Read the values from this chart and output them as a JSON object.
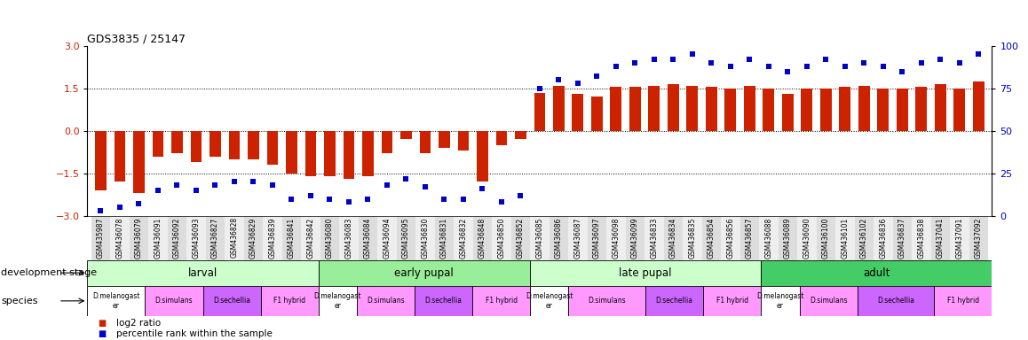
{
  "title": "GDS3835 / 25147",
  "gsm_ids": [
    "GSM435987",
    "GSM436078",
    "GSM436079",
    "GSM436091",
    "GSM436092",
    "GSM436093",
    "GSM436827",
    "GSM436828",
    "GSM436829",
    "GSM436839",
    "GSM436841",
    "GSM436842",
    "GSM436080",
    "GSM436083",
    "GSM436084",
    "GSM436094",
    "GSM436095",
    "GSM436830",
    "GSM436831",
    "GSM436832",
    "GSM436848",
    "GSM436850",
    "GSM436852",
    "GSM436085",
    "GSM436086",
    "GSM436087",
    "GSM436097",
    "GSM436098",
    "GSM436099",
    "GSM436833",
    "GSM436834",
    "GSM436835",
    "GSM436854",
    "GSM436856",
    "GSM436857",
    "GSM436088",
    "GSM436089",
    "GSM436090",
    "GSM436100",
    "GSM436101",
    "GSM436102",
    "GSM436836",
    "GSM436837",
    "GSM436838",
    "GSM437041",
    "GSM437091",
    "GSM437092"
  ],
  "log2_ratio": [
    -2.1,
    -1.8,
    -2.2,
    -0.9,
    -0.8,
    -1.1,
    -0.9,
    -1.0,
    -1.0,
    -1.2,
    -1.5,
    -1.6,
    -1.6,
    -1.7,
    -1.6,
    -0.8,
    -0.3,
    -0.8,
    -0.6,
    -0.7,
    -1.8,
    -0.5,
    -0.3,
    1.35,
    1.6,
    1.3,
    1.2,
    1.55,
    1.55,
    1.6,
    1.65,
    1.6,
    1.55,
    1.5,
    1.6,
    1.5,
    1.3,
    1.5,
    1.5,
    1.55,
    1.6,
    1.5,
    1.5,
    1.55,
    1.65,
    1.5,
    1.75
  ],
  "percentile": [
    3,
    5,
    7,
    15,
    18,
    15,
    18,
    20,
    20,
    18,
    10,
    12,
    10,
    8,
    10,
    18,
    22,
    17,
    10,
    10,
    16,
    8,
    12,
    75,
    80,
    78,
    82,
    88,
    90,
    92,
    92,
    95,
    90,
    88,
    92,
    88,
    85,
    88,
    92,
    88,
    90,
    88,
    85,
    90,
    92,
    90,
    95
  ],
  "stage_groups": [
    {
      "label": "larval",
      "start": 0,
      "end": 12,
      "color": "#ccffcc"
    },
    {
      "label": "early pupal",
      "start": 12,
      "end": 23,
      "color": "#99ee99"
    },
    {
      "label": "late pupal",
      "start": 23,
      "end": 35,
      "color": "#ccffcc"
    },
    {
      "label": "adult",
      "start": 35,
      "end": 47,
      "color": "#44cc66"
    }
  ],
  "species_groups": [
    {
      "label": "D.melanogast\ner",
      "start": 0,
      "end": 3,
      "color": "#ffffff"
    },
    {
      "label": "D.simulans",
      "start": 3,
      "end": 6,
      "color": "#ff99ff"
    },
    {
      "label": "D.sechellia",
      "start": 6,
      "end": 9,
      "color": "#cc66ff"
    },
    {
      "label": "F1 hybrid",
      "start": 9,
      "end": 12,
      "color": "#ff99ff"
    },
    {
      "label": "D.melanogast\ner",
      "start": 12,
      "end": 14,
      "color": "#ffffff"
    },
    {
      "label": "D.simulans",
      "start": 14,
      "end": 17,
      "color": "#ff99ff"
    },
    {
      "label": "D.sechellia",
      "start": 17,
      "end": 20,
      "color": "#cc66ff"
    },
    {
      "label": "F1 hybrid",
      "start": 20,
      "end": 23,
      "color": "#ff99ff"
    },
    {
      "label": "D.melanogast\ner",
      "start": 23,
      "end": 25,
      "color": "#ffffff"
    },
    {
      "label": "D.simulans",
      "start": 25,
      "end": 29,
      "color": "#ff99ff"
    },
    {
      "label": "D.sechellia",
      "start": 29,
      "end": 32,
      "color": "#cc66ff"
    },
    {
      "label": "F1 hybrid",
      "start": 32,
      "end": 35,
      "color": "#ff99ff"
    },
    {
      "label": "D.melanogast\ner",
      "start": 35,
      "end": 37,
      "color": "#ffffff"
    },
    {
      "label": "D.simulans",
      "start": 37,
      "end": 40,
      "color": "#ff99ff"
    },
    {
      "label": "D.sechellia",
      "start": 40,
      "end": 44,
      "color": "#cc66ff"
    },
    {
      "label": "F1 hybrid",
      "start": 44,
      "end": 47,
      "color": "#ff99ff"
    }
  ],
  "bar_color": "#cc2200",
  "dot_color": "#0000cc",
  "ylim_left": [
    -3,
    3
  ],
  "ylim_right": [
    0,
    100
  ],
  "yticks_left": [
    -3,
    -1.5,
    0,
    1.5,
    3
  ],
  "yticks_right": [
    0,
    25,
    50,
    75,
    100
  ],
  "hlines": [
    -1.5,
    0,
    1.5
  ],
  "legend_items": [
    {
      "label": "log2 ratio",
      "color": "#cc2200"
    },
    {
      "label": "percentile rank within the sample",
      "color": "#0000cc"
    }
  ]
}
